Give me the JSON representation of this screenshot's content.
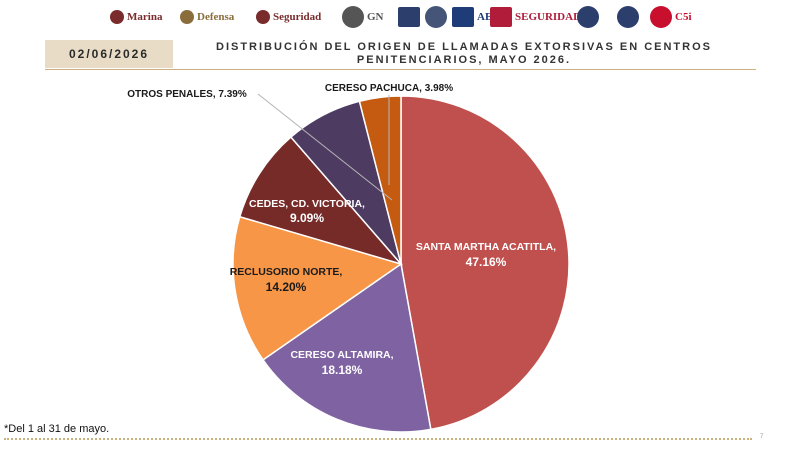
{
  "logos": [
    {
      "name": "marina-logo",
      "text": "Marina",
      "color": "#7a2c2c"
    },
    {
      "name": "defensa-logo",
      "text": "Defensa",
      "color": "#8a6d3b"
    },
    {
      "name": "seguridad-logo",
      "text": "Seguridad",
      "color": "#7a2c2c"
    },
    {
      "name": "gn-logo",
      "text": "GN",
      "color": "#555555"
    },
    {
      "name": "fge-logo",
      "text": "",
      "color": "#2c3e6b"
    },
    {
      "name": "fiscalia-seal-logo",
      "text": "",
      "color": "#445577"
    },
    {
      "name": "aei-logo",
      "text": "AEI",
      "color": "#1d3c78"
    },
    {
      "name": "seguridad-oaxaca-logo",
      "text": "SEGURIDAD",
      "color": "#b01c3a"
    },
    {
      "name": "police-badge-logo",
      "text": "",
      "color": "#2c3e6b"
    },
    {
      "name": "police-badge-2-logo",
      "text": "",
      "color": "#2c3e6b"
    },
    {
      "name": "c5i-logo",
      "text": "C5i",
      "color": "#c8102e"
    }
  ],
  "header": {
    "date": "02/06/2026",
    "title_line1": "DISTRIBUCIÓN DEL ORIGEN DE LLAMADAS EXTORSIVAS EN CENTROS",
    "title_line2": "PENITENCIARIOS, MAYO 2026."
  },
  "chart_data": {
    "type": "pie",
    "title": "DISTRIBUCIÓN DEL ORIGEN DE LLAMADAS EXTORSIVAS EN CENTROS PENITENCIARIOS, MAYO 2026.",
    "slices": [
      {
        "name": "SANTA MARTHA ACATITLA,",
        "pct_label": "47.16%",
        "value": 47.16,
        "color": "#c0504d",
        "label_color": "#ffffff",
        "label_pos": "inside"
      },
      {
        "name": "CERESO ALTAMIRA,",
        "pct_label": "18.18%",
        "value": 18.18,
        "color": "#7e62a1",
        "label_color": "#ffffff",
        "label_pos": "inside"
      },
      {
        "name": "RECLUSORIO NORTE,",
        "pct_label": "14.20%",
        "value": 14.2,
        "color": "#f79646",
        "label_color": "#1a1a1a",
        "label_pos": "inside"
      },
      {
        "name": "CEDES, CD. VICTORIA,",
        "pct_label": "9.09%",
        "value": 9.09,
        "color": "#772b29",
        "label_color": "#ffffff",
        "label_pos": "inside"
      },
      {
        "name": "OTROS PENALES,",
        "pct_label": "7.39%",
        "value": 7.39,
        "color": "#4e3b62",
        "label_color": "#1a1a1a",
        "label_pos": "outside"
      },
      {
        "name": "CERESO PACHUCA,",
        "pct_label": "3.98%",
        "value": 3.98,
        "color": "#c55a11",
        "label_color": "#1a1a1a",
        "label_pos": "outside"
      }
    ],
    "start_angle_deg": 0,
    "direction": "clockwise"
  },
  "footer": {
    "footnote": "*Del 1 al 31 de mayo.",
    "page_number": "7"
  }
}
